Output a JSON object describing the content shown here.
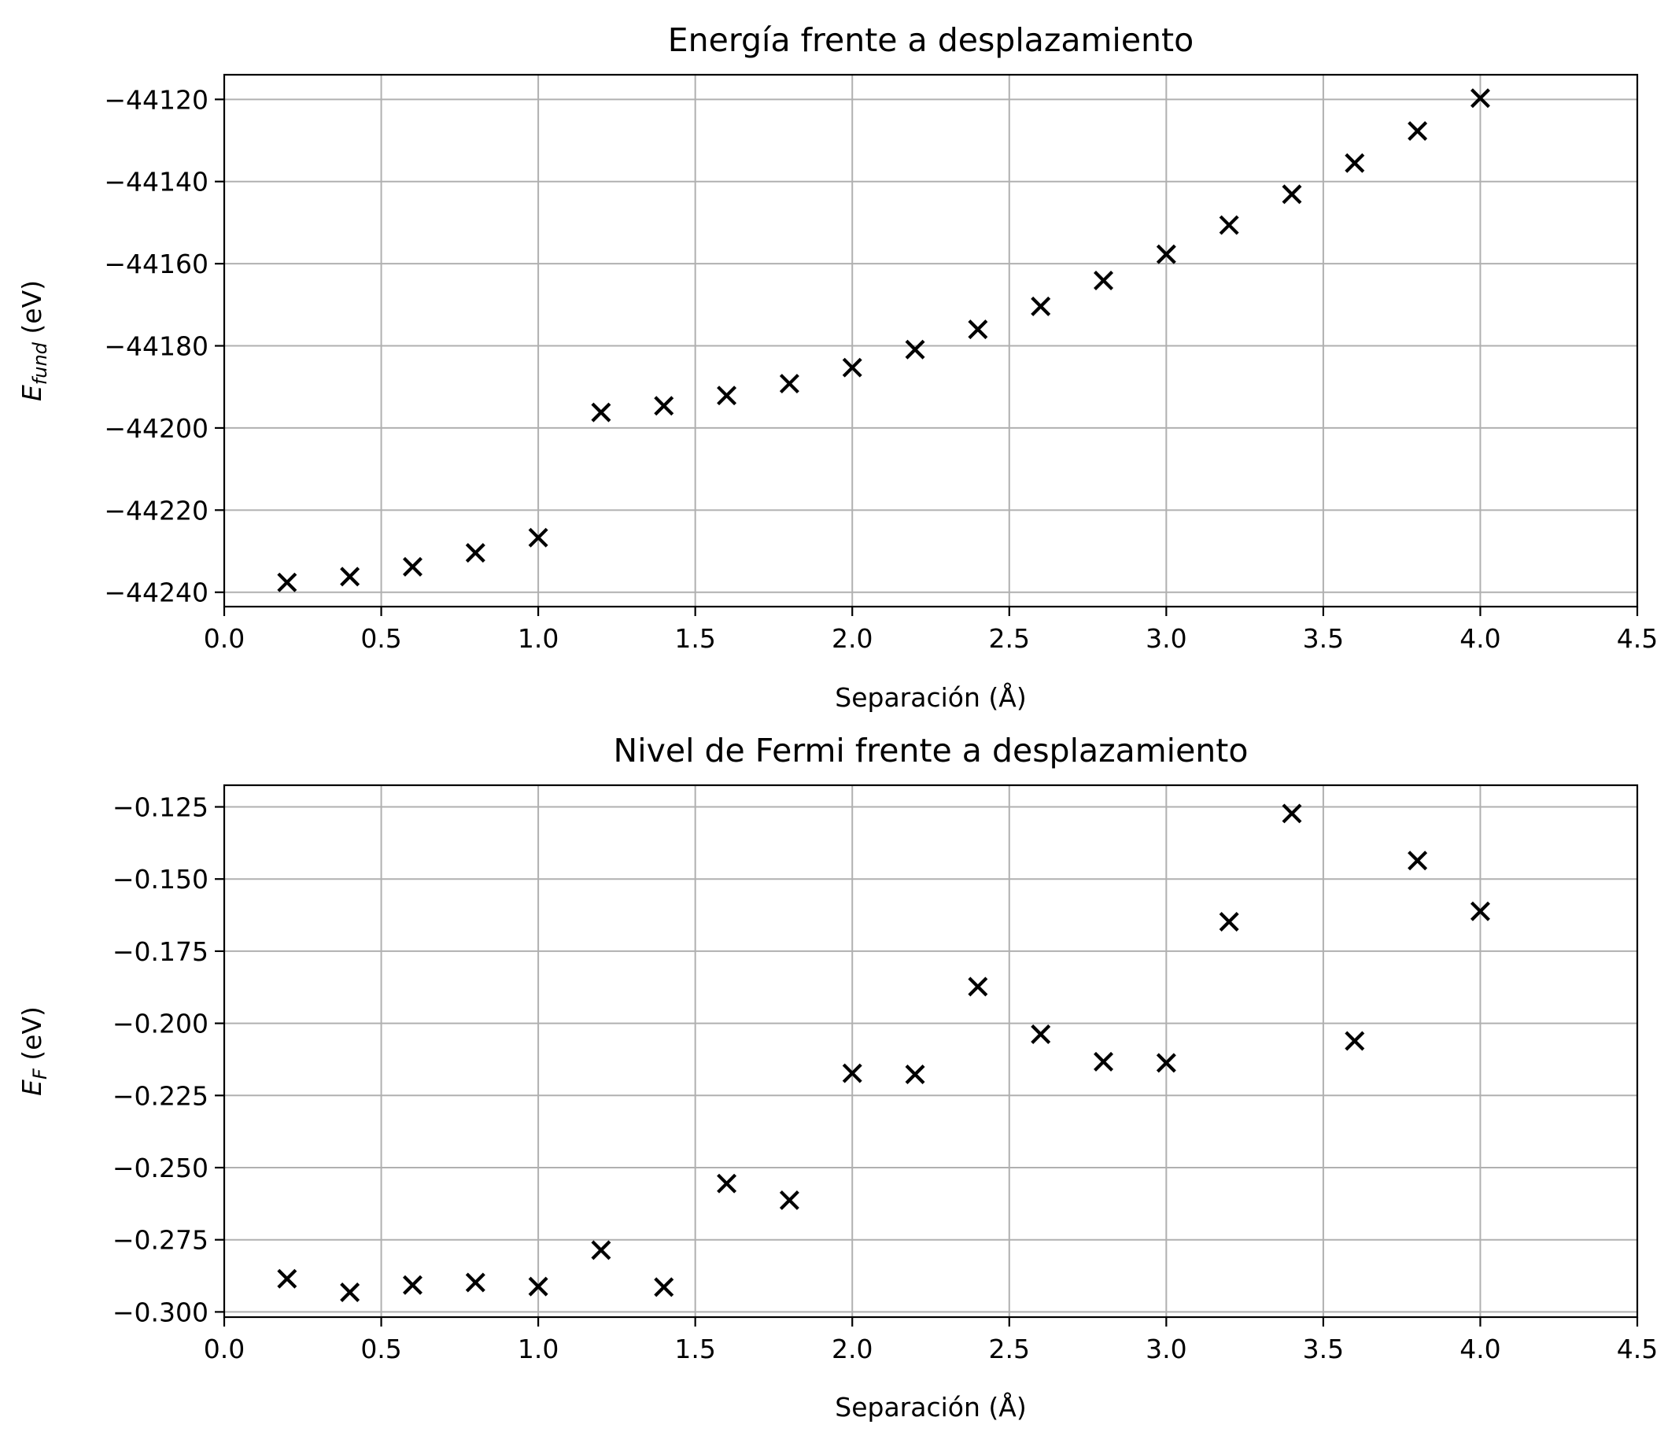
{
  "chart_data": [
    {
      "type": "scatter",
      "title": "Energía frente a desplazamiento",
      "xlabel": "Separación (Å)",
      "ylabel_main": "E",
      "ylabel_sub": "fund",
      "ylabel_unit": " (eV)",
      "xlim": [
        0.0,
        4.5
      ],
      "ylim": [
        -44243.5,
        -44114
      ],
      "xticks": [
        0.0,
        0.5,
        1.0,
        1.5,
        2.0,
        2.5,
        3.0,
        3.5,
        4.0,
        4.5
      ],
      "xtick_labels": [
        "0.0",
        "0.5",
        "1.0",
        "1.5",
        "2.0",
        "2.5",
        "3.0",
        "3.5",
        "4.0",
        "4.5"
      ],
      "yticks": [
        -44240,
        -44220,
        -44200,
        -44180,
        -44160,
        -44140,
        -44120
      ],
      "ytick_labels": [
        "−44240",
        "−44220",
        "−44200",
        "−44180",
        "−44160",
        "−44140",
        "−44120"
      ],
      "grid": true,
      "marker": "x",
      "color": "#000000",
      "x": [
        0.2,
        0.4,
        0.6,
        0.8,
        1.0,
        1.2,
        1.4,
        1.6,
        1.8,
        2.0,
        2.2,
        2.4,
        2.6,
        2.8,
        3.0,
        3.2,
        3.4,
        3.6,
        3.8,
        4.0
      ],
      "y": [
        -44237.6,
        -44236.2,
        -44233.8,
        -44230.4,
        -44226.7,
        -44196.2,
        -44194.6,
        -44192.1,
        -44189.2,
        -44185.3,
        -44180.9,
        -44176.0,
        -44170.4,
        -44164.1,
        -44157.7,
        -44150.6,
        -44143.1,
        -44135.5,
        -44127.7,
        -44119.7
      ]
    },
    {
      "type": "scatter",
      "title": "Nivel de Fermi frente a desplazamiento",
      "xlabel": "Separación (Å)",
      "ylabel_main": "E",
      "ylabel_sub": "F",
      "ylabel_unit": " (eV)",
      "xlim": [
        0.0,
        4.5
      ],
      "ylim": [
        -0.3018,
        -0.1175
      ],
      "xticks": [
        0.0,
        0.5,
        1.0,
        1.5,
        2.0,
        2.5,
        3.0,
        3.5,
        4.0,
        4.5
      ],
      "xtick_labels": [
        "0.0",
        "0.5",
        "1.0",
        "1.5",
        "2.0",
        "2.5",
        "3.0",
        "3.5",
        "4.0",
        "4.5"
      ],
      "yticks": [
        -0.3,
        -0.275,
        -0.25,
        -0.225,
        -0.2,
        -0.175,
        -0.15,
        -0.125
      ],
      "ytick_labels": [
        "−0.300",
        "−0.275",
        "−0.250",
        "−0.225",
        "−0.200",
        "−0.175",
        "−0.150",
        "−0.125"
      ],
      "grid": true,
      "marker": "x",
      "color": "#000000",
      "x": [
        0.2,
        0.4,
        0.6,
        0.8,
        1.0,
        1.2,
        1.4,
        1.6,
        1.8,
        2.0,
        2.2,
        2.4,
        2.6,
        2.8,
        3.0,
        3.2,
        3.4,
        3.6,
        3.8,
        4.0
      ],
      "y": [
        -0.2885,
        -0.2932,
        -0.2907,
        -0.2898,
        -0.2912,
        -0.2786,
        -0.2914,
        -0.2555,
        -0.2613,
        -0.2173,
        -0.2177,
        -0.1873,
        -0.2038,
        -0.2133,
        -0.2137,
        -0.1648,
        -0.1273,
        -0.2061,
        -0.1436,
        -0.1612
      ]
    }
  ]
}
